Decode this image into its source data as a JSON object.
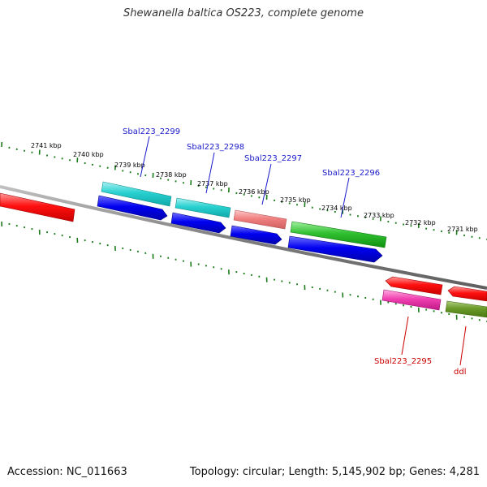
{
  "title": "Shewanella baltica OS223, complete genome",
  "footer": {
    "accession": "Accession: NC_011663",
    "summary": "Topology: circular; Length: 5,145,902 bp; Genes: 4,281"
  },
  "colors": {
    "backbone": "#808080",
    "tick": "#1a7a1a",
    "label_forward": "#1a1acc",
    "label_reverse": "#cc0000"
  },
  "kbp_labels": [
    "2741 kbp",
    "2740 kbp",
    "2739 kbp",
    "2738 kbp",
    "2737 kbp",
    "2736 kbp",
    "2735 kbp",
    "2734 kbp",
    "2733 kbp",
    "2732 kbp",
    "2731 kbp"
  ],
  "gene_labels": {
    "sbal2299": "Sbal223_2299",
    "sbal2298": "Sbal223_2298",
    "sbal2297": "Sbal223_2297",
    "sbal2296": "Sbal223_2296",
    "sbal2295": "Sbal223_2295",
    "ddl": "ddl"
  }
}
